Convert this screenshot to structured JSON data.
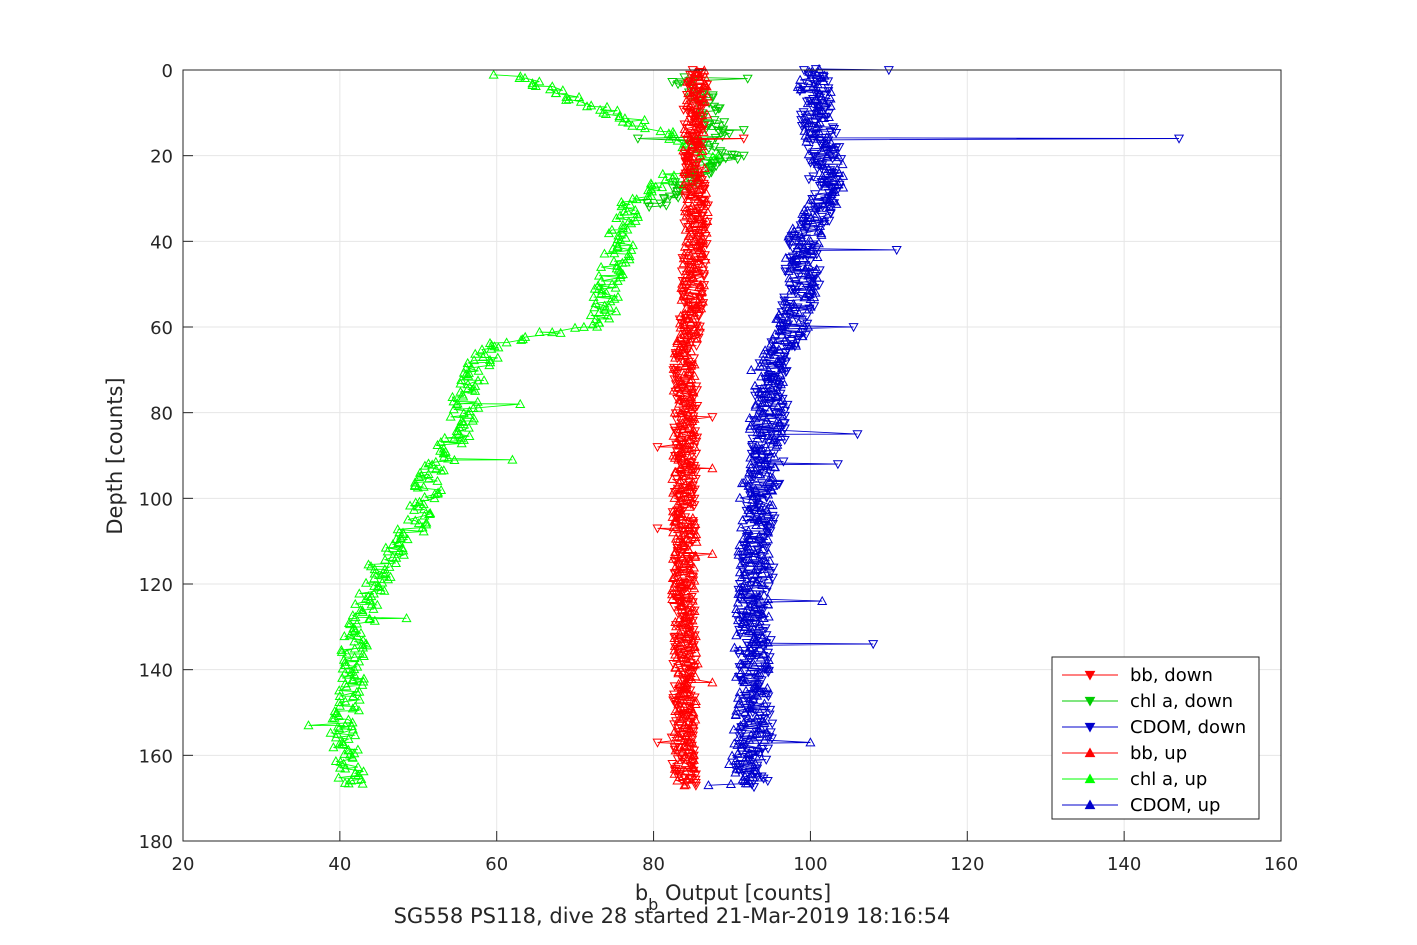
{
  "chart_data": {
    "type": "line",
    "xlabel_main": "b",
    "xlabel_sub": "b",
    "xlabel_rest": " Output [counts]",
    "ylabel": "Depth [counts]",
    "caption": "SG558 PS118, dive 28 started 21-Mar-2019 18:16:54",
    "xlim": [
      20,
      160
    ],
    "ylim": [
      0,
      180
    ],
    "y_reversed": true,
    "grid": true,
    "legend_position": "bottom-right",
    "xticks": [
      20,
      40,
      60,
      80,
      100,
      120,
      140,
      160
    ],
    "yticks": [
      0,
      20,
      40,
      60,
      80,
      100,
      120,
      140,
      160,
      180
    ],
    "series": [
      {
        "name": "bb, down",
        "color": "#ff0000",
        "marker": "triangle-down",
        "y": [
          0,
          10,
          20,
          30,
          40,
          50,
          60,
          70,
          80,
          90,
          100,
          110,
          120,
          130,
          140,
          150,
          160,
          167
        ],
        "x": [
          85.5,
          85.0,
          85.2,
          85.5,
          85.3,
          85.0,
          84.6,
          84.0,
          84.2,
          84.0,
          83.8,
          84.2,
          83.8,
          83.8,
          84.0,
          83.8,
          83.8,
          84.0
        ],
        "jitter": 1.5,
        "spikes": [
          {
            "y": 16,
            "x": 91.5
          },
          {
            "y": 81,
            "x": 87.5
          },
          {
            "y": 88,
            "x": 80.5
          },
          {
            "y": 107,
            "x": 80.5
          },
          {
            "y": 157,
            "x": 80.5
          }
        ]
      },
      {
        "name": "chl a, down",
        "color": "#00cc00",
        "marker": "triangle-down",
        "y": [
          2,
          5,
          10,
          15,
          18,
          20,
          22,
          25,
          30,
          32
        ],
        "x": [
          83,
          86,
          87,
          88,
          86,
          90,
          88,
          85,
          82,
          80
        ],
        "jitter": 1.8,
        "spikes": [
          {
            "y": 2,
            "x": 92
          },
          {
            "y": 14,
            "x": 91.5
          },
          {
            "y": 20,
            "x": 91.5
          },
          {
            "y": 16,
            "x": 78
          }
        ]
      },
      {
        "name": "CDOM, down",
        "color": "#0000cc",
        "marker": "triangle-down",
        "y": [
          0,
          10,
          20,
          30,
          40,
          50,
          60,
          70,
          80,
          90,
          100,
          110,
          120,
          130,
          140,
          150,
          160,
          167
        ],
        "x": [
          100,
          100.5,
          102,
          102,
          99,
          99,
          98,
          95,
          95,
          94.5,
          93.5,
          93.5,
          93,
          93,
          93,
          93,
          93,
          92.5
        ],
        "jitter": 2.2,
        "spikes": [
          {
            "y": 0,
            "x": 110
          },
          {
            "y": 16,
            "x": 147
          },
          {
            "y": 42,
            "x": 111
          },
          {
            "y": 60,
            "x": 105.5
          },
          {
            "y": 85,
            "x": 106
          },
          {
            "y": 92,
            "x": 103.5
          },
          {
            "y": 134,
            "x": 108
          }
        ]
      },
      {
        "name": "bb, up",
        "color": "#ff0000",
        "marker": "triangle-up",
        "y": [
          0,
          10,
          20,
          30,
          40,
          50,
          60,
          70,
          80,
          90,
          100,
          110,
          120,
          130,
          140,
          150,
          160,
          167
        ],
        "x": [
          85.5,
          85.5,
          85.0,
          85.5,
          85.5,
          85.0,
          84.5,
          84.0,
          84.0,
          84.0,
          83.8,
          84.0,
          83.8,
          84.0,
          84.2,
          84.0,
          84.0,
          84.2
        ],
        "jitter": 1.5,
        "spikes": [
          {
            "y": 93,
            "x": 87.5
          },
          {
            "y": 113,
            "x": 87.5
          },
          {
            "y": 143,
            "x": 87.5
          }
        ]
      },
      {
        "name": "chl a, up",
        "color": "#00ff00",
        "marker": "triangle-up",
        "y": [
          1,
          3,
          7,
          10,
          13,
          15,
          18,
          20,
          22,
          25,
          28,
          30,
          35,
          40,
          45,
          50,
          55,
          60,
          62,
          64,
          68,
          72,
          76,
          80,
          85,
          90,
          95,
          100,
          105,
          110,
          115,
          120,
          125,
          130,
          135,
          140,
          145,
          150,
          155,
          160,
          165,
          167
        ],
        "x": [
          60,
          65,
          70,
          75,
          79,
          82,
          84,
          87,
          86,
          82,
          80,
          78,
          76,
          76,
          75,
          74,
          74,
          72,
          64,
          60,
          58,
          57,
          56,
          56,
          55,
          53.5,
          51.5,
          51,
          50,
          48,
          45.5,
          44.5,
          43.5,
          42.5,
          42,
          41.5,
          41.5,
          41,
          40.5,
          41,
          41.5,
          42
        ],
        "jitter": 1.8,
        "spikes": [
          {
            "y": 78,
            "x": 63
          },
          {
            "y": 91,
            "x": 62
          },
          {
            "y": 128,
            "x": 48.5
          },
          {
            "y": 153,
            "x": 36
          }
        ]
      },
      {
        "name": "CDOM, up",
        "color": "#0000cc",
        "marker": "triangle-up",
        "y": [
          0,
          10,
          20,
          30,
          40,
          50,
          60,
          70,
          80,
          90,
          100,
          110,
          120,
          130,
          140,
          150,
          160,
          167
        ],
        "x": [
          100,
          101,
          102,
          102,
          99,
          99,
          97.5,
          94.5,
          94.5,
          94,
          93,
          93,
          92.5,
          92.5,
          92.5,
          92.5,
          92,
          91
        ],
        "jitter": 2.2,
        "spikes": [
          {
            "y": 124,
            "x": 101.5
          },
          {
            "y": 157,
            "x": 100
          },
          {
            "y": 167,
            "x": 87
          }
        ]
      }
    ]
  }
}
